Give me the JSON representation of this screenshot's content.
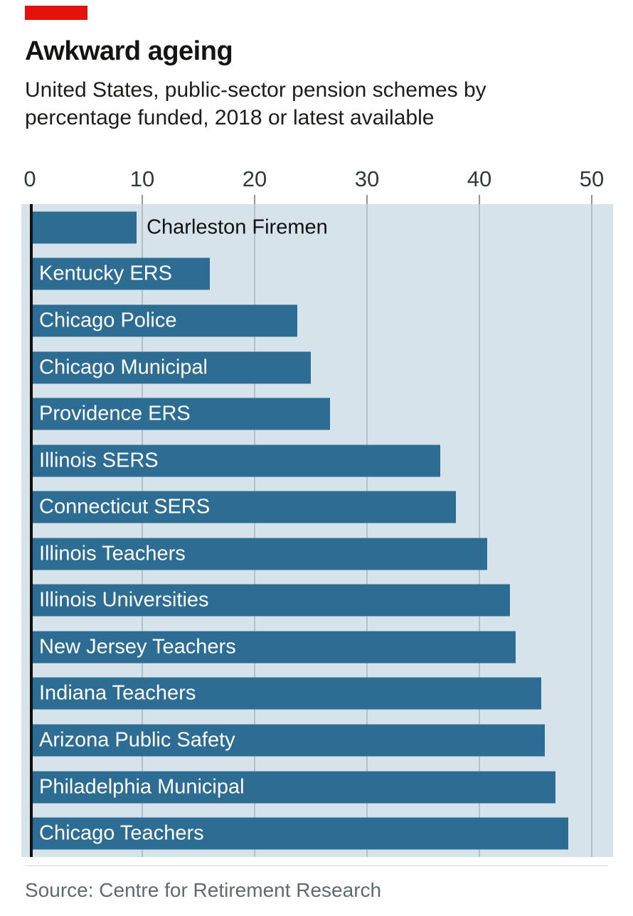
{
  "header": {
    "title": "Awkward ageing",
    "subtitle": "United States, public-sector pension schemes by percentage funded, 2018 or latest available"
  },
  "chart_data": {
    "type": "bar",
    "orientation": "horizontal",
    "title": "Awkward ageing",
    "subtitle": "United States, public-sector pension schemes by percentage funded, 2018 or latest available",
    "xlabel": "",
    "ylabel": "",
    "xlim": [
      0,
      50
    ],
    "x_ticks": [
      0,
      10,
      20,
      30,
      40,
      50
    ],
    "grid": "vertical gridlines on",
    "legend": "none",
    "categories": [
      "Charleston Firemen",
      "Kentucky ERS",
      "Chicago Police",
      "Chicago Municipal",
      "Providence ERS",
      "Illinois SERS",
      "Connecticut SERS",
      "Illinois Teachers",
      "Illinois Universities",
      "New Jersey Teachers",
      "Indiana Teachers",
      "Arizona Public Safety",
      "Philadelphia Municipal",
      "Chicago Teachers"
    ],
    "values": [
      9.5,
      16,
      23.8,
      25,
      26.7,
      36.5,
      37.9,
      40.7,
      42.7,
      43.2,
      45.5,
      45.8,
      46.8,
      47.9
    ],
    "outside_label_indices": [
      0
    ],
    "bar_color": "#2d6d94",
    "plot_background": "#d7e3eb"
  },
  "footer": {
    "source": "Source: Centre for Retirement Research"
  },
  "colors": {
    "accent_red": "#e3120b",
    "bar": "#2d6d94",
    "plot_bg": "#d7e3eb",
    "gridline": "#b5c1c9",
    "title_text": "#141413",
    "axis_text": "#33383c",
    "source_text": "#60696e"
  }
}
